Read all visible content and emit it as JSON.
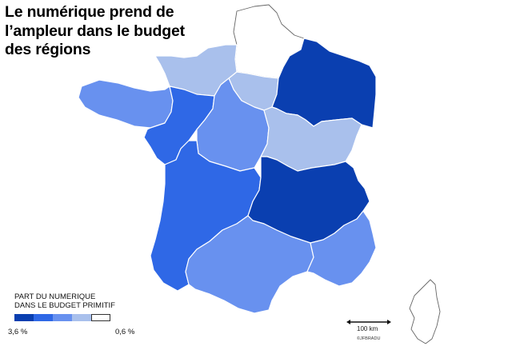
{
  "title": {
    "line1": "Le numérique prend de",
    "line2": "l’ampleur dans le budget",
    "line3": "des régions"
  },
  "legend": {
    "title_line1": "PART DU NUMERIQUE",
    "title_line2": "DANS LE BUDGET PRIMITIF",
    "min_label": "3,6 %",
    "max_label": "0,6 %",
    "scale_colors": [
      "#0a3fb0",
      "#2f68e6",
      "#6891ef",
      "#a9c0ec",
      "#ffffff"
    ]
  },
  "scale_bar": {
    "label": "100 km"
  },
  "credit": "©JFBRADU",
  "regions": [
    {
      "id": "hauts-de-france",
      "class": 4
    },
    {
      "id": "normandie",
      "class": 3
    },
    {
      "id": "ile-de-france",
      "class": 3
    },
    {
      "id": "grand-est",
      "class": 0
    },
    {
      "id": "bretagne",
      "class": 2
    },
    {
      "id": "pays-de-la-loire",
      "class": 1
    },
    {
      "id": "centre-val-de-loire",
      "class": 2
    },
    {
      "id": "bourgogne-franche-comte",
      "class": 3
    },
    {
      "id": "nouvelle-aquitaine",
      "class": 1
    },
    {
      "id": "auvergne-rhone-alpes",
      "class": 0
    },
    {
      "id": "occitanie",
      "class": 2
    },
    {
      "id": "provence-alpes-cote-d-azur",
      "class": 2
    },
    {
      "id": "corse",
      "class": 4
    }
  ]
}
